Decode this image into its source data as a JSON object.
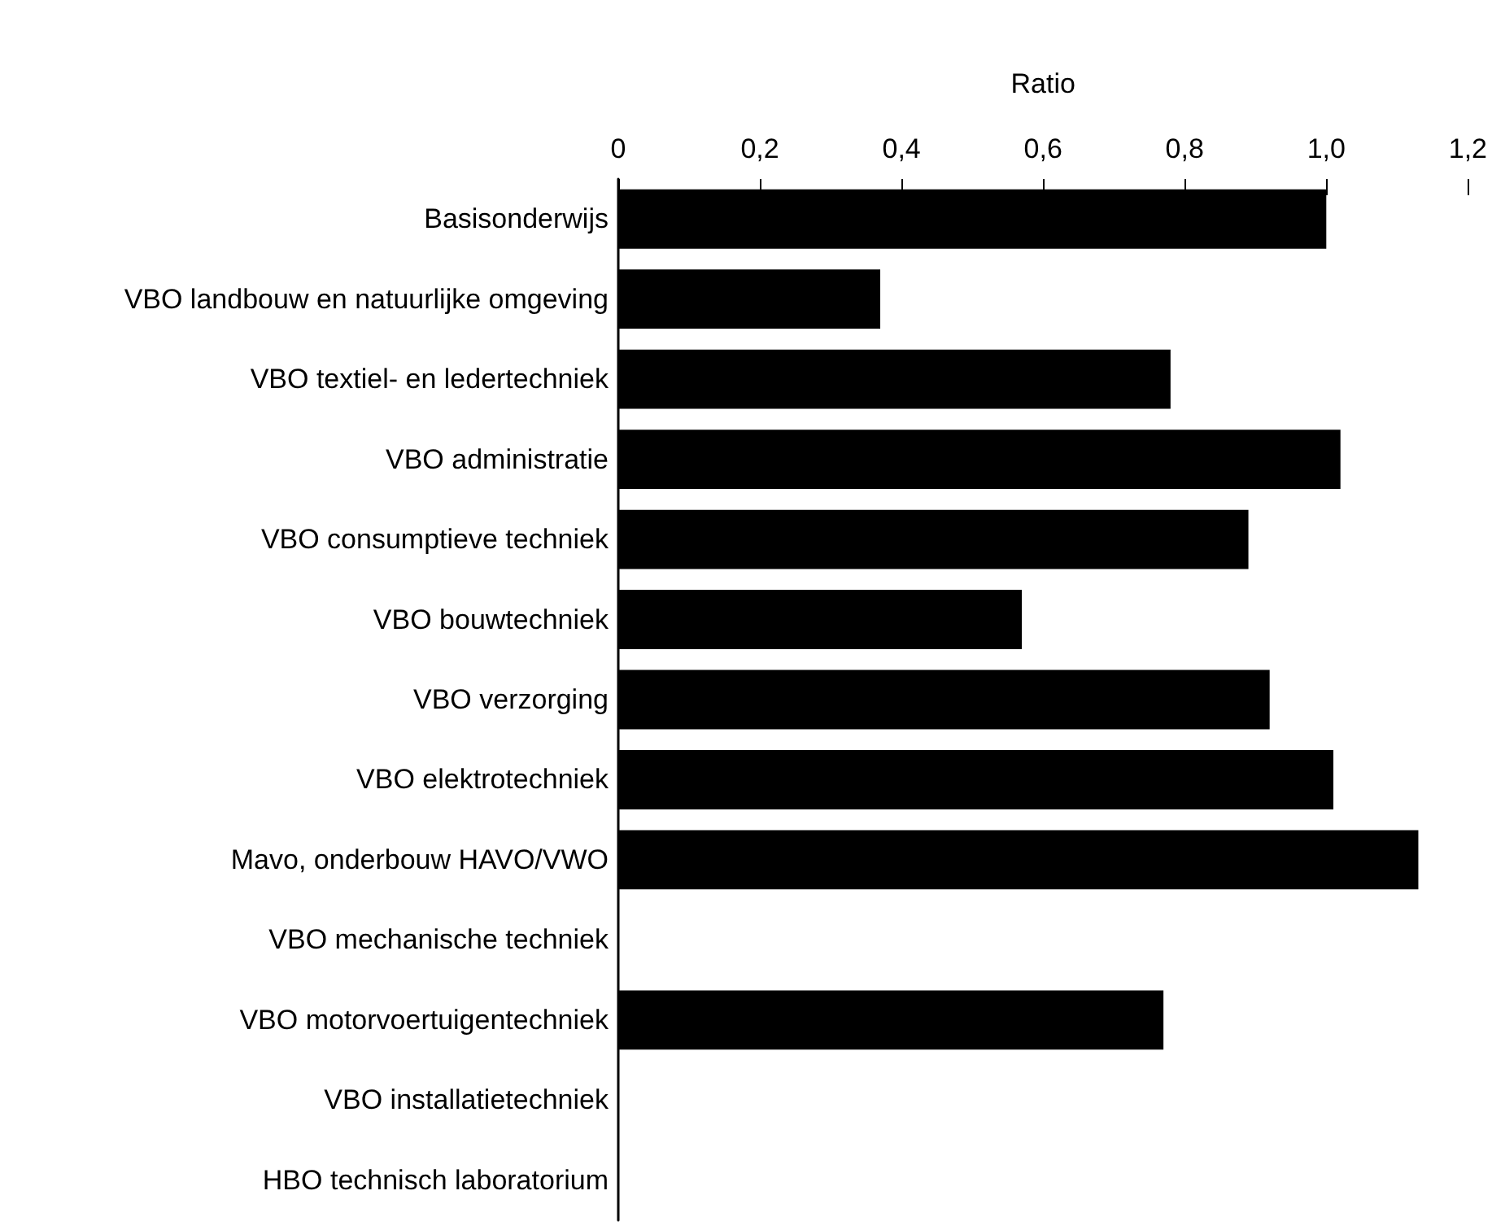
{
  "chart_data": {
    "type": "bar",
    "orientation": "horizontal",
    "xlabel": "Ratio",
    "categories": [
      "Basisonderwijs",
      "VBO landbouw en natuurlijke omgeving",
      "VBO textiel- en ledertechniek",
      "VBO administratie",
      "VBO consumptieve techniek",
      "VBO bouwtechniek",
      "VBO verzorging",
      "VBO elektrotechniek",
      "Mavo, onderbouw HAVO/VWO",
      "VBO mechanische techniek",
      "VBO motorvoertuigentechniek",
      "VBO installatietechniek",
      "HBO technisch laboratorium"
    ],
    "values": [
      1.0,
      0.37,
      0.78,
      1.02,
      0.89,
      0.57,
      0.92,
      1.01,
      1.13,
      null,
      0.77,
      null,
      null
    ],
    "color": "#000000",
    "xlim": [
      0,
      1.2
    ],
    "xticks": [
      0,
      {
        "value": 0.2,
        "label": "0,2"
      },
      {
        "value": 0.4,
        "label": "0,4"
      },
      {
        "value": 0.6,
        "label": "0,6"
      },
      {
        "value": 0.8,
        "label": "0,8"
      },
      {
        "value": 1.0,
        "label": "1,0"
      },
      {
        "value": 1.2,
        "label": "1,2"
      }
    ],
    "data_labels": false
  }
}
